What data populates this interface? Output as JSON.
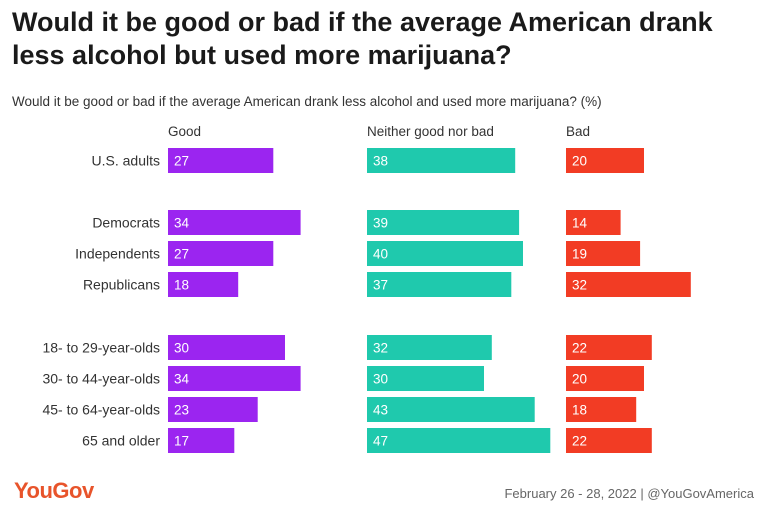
{
  "title": "Would it be good or bad if the average American drank less alcohol but used more marijuana?",
  "subtitle": "Would it be good or bad if the average American drank less alcohol and used more marijuana? (%)",
  "brand": "YouGov",
  "footer": "February 26 - 28, 2022 | @YouGovAmerica",
  "colors": {
    "good": "#9b25f0",
    "neither": "#1fc9ad",
    "bad": "#f23c24"
  },
  "chart_data": {
    "type": "bar",
    "orientation": "horizontal",
    "categories": [
      "U.S. adults",
      "Democrats",
      "Independents",
      "Republicans",
      "18- to 29-year-olds",
      "30- to 44-year-olds",
      "45- to 64-year-olds",
      "65 and older"
    ],
    "groups": [
      [
        0
      ],
      [
        1,
        2,
        3
      ],
      [
        4,
        5,
        6,
        7
      ]
    ],
    "series": [
      {
        "name": "Good",
        "values": [
          27,
          34,
          27,
          18,
          30,
          34,
          23,
          17
        ]
      },
      {
        "name": "Neither good nor bad",
        "values": [
          38,
          39,
          40,
          37,
          32,
          30,
          43,
          47
        ]
      },
      {
        "name": "Bad",
        "values": [
          20,
          14,
          19,
          32,
          22,
          20,
          18,
          22
        ]
      }
    ],
    "title": "Would it be good or bad if the average American drank less alcohol but used more marijuana?",
    "xlabel": "",
    "ylabel": ""
  }
}
